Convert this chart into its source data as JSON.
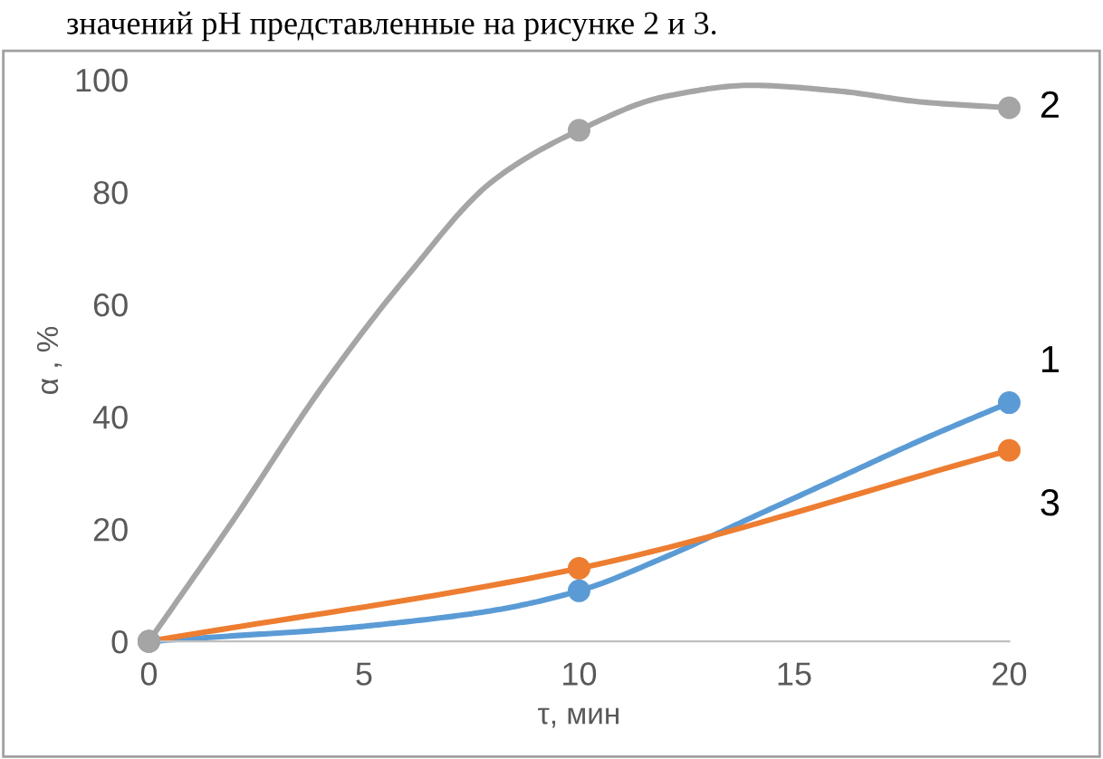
{
  "chart_data": {
    "type": "line",
    "xlabel": "τ, мин",
    "ylabel": "α , %",
    "x": [
      0,
      10,
      20
    ],
    "series": [
      {
        "name": "1",
        "color": "#5b9bd5",
        "x": [
          0,
          2,
          4,
          6,
          8,
          10,
          12,
          14,
          16,
          18,
          20
        ],
        "values": [
          0,
          1,
          2,
          3.5,
          5.5,
          9,
          15,
          22,
          29,
          36,
          42.5
        ],
        "marker": "none"
      },
      {
        "type": "scatter",
        "color": "#5b9bd5",
        "values": [
          0,
          9,
          42.5
        ]
      },
      {
        "name": "2",
        "color": "#a5a5a5",
        "x": [
          0,
          2,
          4,
          6,
          8,
          10,
          12,
          14,
          16,
          18,
          20
        ],
        "values": [
          0,
          22,
          45,
          65,
          82,
          91,
          97,
          99,
          98,
          96,
          95
        ],
        "marker": "none"
      },
      {
        "name": "3",
        "color": "#ed7d31",
        "values": [
          0,
          13,
          34
        ]
      },
      {
        "type": "scatter",
        "color": "#a5a5a5",
        "values": [
          0,
          91,
          95
        ]
      }
    ],
    "xlim": [
      0,
      20
    ],
    "xticks": [
      0,
      5,
      10,
      15,
      20
    ],
    "ylim": [
      0,
      100
    ],
    "yticks": [
      0,
      20,
      40,
      60,
      80,
      100
    ],
    "marker": "circle",
    "line_style": "solid",
    "grid": false,
    "legend": false,
    "annotations": [
      "значений pH представленные на рисунке 2 и 3."
    ]
  }
}
